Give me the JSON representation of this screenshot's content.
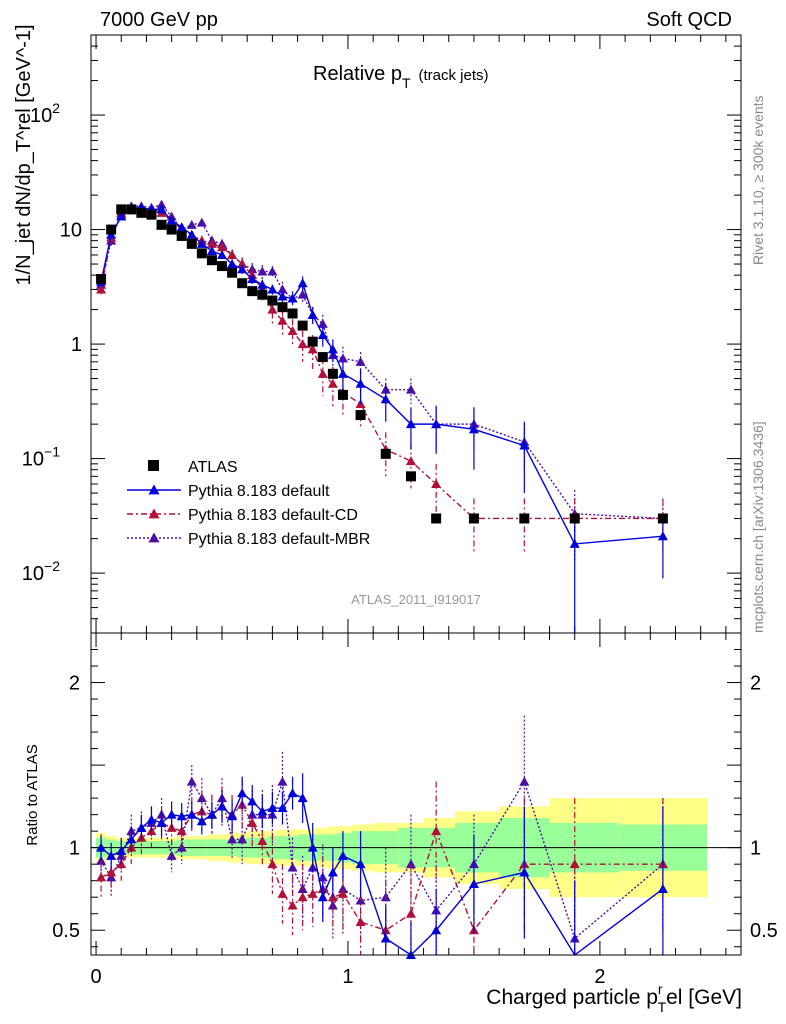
{
  "header": {
    "left": "7000 GeV pp",
    "right": "Soft QCD"
  },
  "side_labels": {
    "top": "Rivet 3.1.10, ≥ 300k events",
    "bottom": "mcplots.cern.ch [arXiv:1306.3436]"
  },
  "chart_data": {
    "type": "scatter",
    "title_main": "Relative p",
    "title_sub": "T",
    "title_suffix": "(track jets)",
    "watermark": "ATLAS_2011_I919017",
    "ylabel": "1/N_jet dN/dp_T^rel [GeV^-1]",
    "xlabel_main": "Charged particle p",
    "xlabel_sub": "T",
    "xlabel_sup": "r",
    "xlabel_suffix": "el [GeV]",
    "ratio_ylabel": "Ratio to ATLAS",
    "xlim": [
      -0.02,
      2.56
    ],
    "ylim": [
      0.003,
      500
    ],
    "ratio_ylim": [
      0.35,
      2.3
    ],
    "x_major_ticks": [
      0,
      1,
      2
    ],
    "x_tick_labels": [
      "0",
      "1",
      "2"
    ],
    "y_tick_labels": [
      {
        "v": 0.01,
        "base": "10",
        "exp": "−2"
      },
      {
        "v": 0.1,
        "base": "10",
        "exp": "−1"
      },
      {
        "v": 1,
        "base": "1",
        "exp": ""
      },
      {
        "v": 10,
        "base": "10",
        "exp": ""
      },
      {
        "v": 100,
        "base": "10",
        "exp": "2"
      }
    ],
    "ratio_tick_labels": [
      {
        "v": 0.5,
        "label": "0.5"
      },
      {
        "v": 1,
        "label": "1"
      },
      {
        "v": 2,
        "label": "2"
      }
    ],
    "legend": [
      {
        "name": "ATLAS",
        "color": "#000000",
        "marker": "square",
        "dash": ""
      },
      {
        "name": "Pythia 8.183 default",
        "color": "#0000dd",
        "marker": "triangle",
        "dash": ""
      },
      {
        "name": "Pythia 8.183 default-CD",
        "color": "#b0103a",
        "marker": "triangle",
        "dash": "6,3,2,3"
      },
      {
        "name": "Pythia 8.183 default-MBR",
        "color": "#4b0fa8",
        "marker": "triangle",
        "dash": "2,2"
      }
    ],
    "band_inner_color": "#99ff99",
    "band_outer_color": "#ffff88",
    "data": {
      "x": [
        0.02,
        0.06,
        0.1,
        0.14,
        0.18,
        0.22,
        0.26,
        0.3,
        0.34,
        0.38,
        0.42,
        0.46,
        0.5,
        0.54,
        0.58,
        0.62,
        0.66,
        0.7,
        0.74,
        0.78,
        0.82,
        0.86,
        0.9,
        0.94,
        0.98,
        1.05,
        1.15,
        1.25,
        1.35,
        1.5,
        1.7,
        1.9,
        2.25
      ],
      "y": [
        3.7,
        10.0,
        15.0,
        15.0,
        14.0,
        13.5,
        11.0,
        10.0,
        8.8,
        7.5,
        6.2,
        5.4,
        4.8,
        4.2,
        3.4,
        2.9,
        2.7,
        2.4,
        2.1,
        1.85,
        1.45,
        1.05,
        0.77,
        0.55,
        0.36,
        0.24,
        0.11,
        0.07,
        0.03,
        0.03,
        0.03,
        0.03,
        0.03
      ],
      "err_rel_inner": [
        0.06,
        0.05,
        0.04,
        0.04,
        0.04,
        0.04,
        0.04,
        0.04,
        0.05,
        0.05,
        0.05,
        0.05,
        0.05,
        0.05,
        0.06,
        0.06,
        0.06,
        0.07,
        0.07,
        0.07,
        0.08,
        0.08,
        0.08,
        0.08,
        0.09,
        0.1,
        0.1,
        0.12,
        0.12,
        0.15,
        0.18,
        0.15,
        0.14
      ],
      "err_rel_outer": [
        0.09,
        0.07,
        0.06,
        0.06,
        0.06,
        0.06,
        0.06,
        0.06,
        0.07,
        0.07,
        0.07,
        0.08,
        0.08,
        0.09,
        0.09,
        0.1,
        0.1,
        0.1,
        0.11,
        0.11,
        0.11,
        0.12,
        0.12,
        0.13,
        0.13,
        0.14,
        0.15,
        0.15,
        0.18,
        0.22,
        0.25,
        0.3,
        0.3
      ]
    },
    "atlas": {
      "x": [
        0.02,
        0.06,
        0.1,
        0.14,
        0.18,
        0.22,
        0.26,
        0.3,
        0.34,
        0.38,
        0.42,
        0.46,
        0.5,
        0.54,
        0.58,
        0.62,
        0.66,
        0.7,
        0.74,
        0.78,
        0.82,
        0.86,
        0.9,
        0.94,
        0.98,
        1.05,
        1.15,
        1.25,
        1.35,
        1.5,
        1.7,
        1.9,
        2.25
      ],
      "y": [
        3.7,
        10.0,
        15.0,
        15.0,
        14.0,
        13.5,
        11.0,
        10.0,
        8.8,
        7.5,
        6.2,
        5.4,
        4.8,
        4.2,
        3.4,
        2.9,
        2.7,
        2.4,
        2.1,
        1.85,
        1.45,
        1.05,
        0.77,
        0.55,
        0.36,
        0.24,
        0.11,
        0.07,
        0.03,
        0.03,
        0.03,
        0.03,
        0.03
      ]
    },
    "series": [
      {
        "name": "Pythia 8.183 default",
        "color": "#0000dd",
        "dash": "",
        "x": [
          0.02,
          0.06,
          0.1,
          0.14,
          0.18,
          0.22,
          0.26,
          0.3,
          0.34,
          0.38,
          0.42,
          0.46,
          0.5,
          0.54,
          0.58,
          0.62,
          0.66,
          0.7,
          0.74,
          0.78,
          0.82,
          0.86,
          0.9,
          0.94,
          0.98,
          1.05,
          1.15,
          1.25,
          1.35,
          1.5,
          1.7,
          1.9,
          2.25
        ],
        "y": [
          3.5,
          9.0,
          13.0,
          15.5,
          15.5,
          15.0,
          15.0,
          12.0,
          10.5,
          9.0,
          7.5,
          6.5,
          6.0,
          5.0,
          4.5,
          3.7,
          3.3,
          3.0,
          2.6,
          2.5,
          3.4,
          1.8,
          1.2,
          0.9,
          0.55,
          0.45,
          0.33,
          0.2,
          0.2,
          0.18,
          0.13,
          0.018,
          0.021
        ],
        "err_lo": [
          0.3,
          0.6,
          0.8,
          0.9,
          0.9,
          0.9,
          0.9,
          0.8,
          0.7,
          0.6,
          0.5,
          0.5,
          0.5,
          0.4,
          0.4,
          0.35,
          0.35,
          0.3,
          0.3,
          0.3,
          0.5,
          0.3,
          0.25,
          0.2,
          0.15,
          0.15,
          0.12,
          0.08,
          0.09,
          0.1,
          0.08,
          0.0179,
          0.012
        ],
        "err_hi": [
          0.3,
          0.6,
          0.8,
          0.9,
          0.9,
          0.9,
          0.9,
          0.8,
          0.7,
          0.6,
          0.5,
          0.5,
          0.5,
          0.4,
          0.4,
          0.35,
          0.35,
          0.3,
          0.3,
          0.3,
          0.5,
          0.3,
          0.25,
          0.2,
          0.15,
          0.15,
          0.12,
          0.08,
          0.09,
          0.1,
          0.08,
          0.01,
          0.012
        ]
      },
      {
        "name": "Pythia 8.183 default-CD",
        "color": "#b0103a",
        "dash": "6,3,2,3",
        "x": [
          0.02,
          0.06,
          0.1,
          0.14,
          0.18,
          0.22,
          0.26,
          0.3,
          0.34,
          0.38,
          0.42,
          0.46,
          0.5,
          0.54,
          0.58,
          0.62,
          0.66,
          0.7,
          0.74,
          0.78,
          0.82,
          0.86,
          0.9,
          0.94,
          0.98,
          1.05,
          1.15,
          1.25,
          1.35,
          1.5,
          1.7,
          1.9,
          2.25
        ],
        "y": [
          3.0,
          8.5,
          13.5,
          15.0,
          15.0,
          15.0,
          14.0,
          12.0,
          10.0,
          9.0,
          8.0,
          7.5,
          7.0,
          6.0,
          5.0,
          4.0,
          3.0,
          2.0,
          1.6,
          1.3,
          1.0,
          0.9,
          0.55,
          0.45,
          0.38,
          0.3,
          0.12,
          0.095,
          0.06,
          0.03,
          0.03,
          0.03,
          0.03
        ],
        "err_lo": [
          0.4,
          0.8,
          1.0,
          1.0,
          1.0,
          1.0,
          1.0,
          0.9,
          0.9,
          0.8,
          0.8,
          0.8,
          0.7,
          0.7,
          0.7,
          0.6,
          0.6,
          0.5,
          0.4,
          0.35,
          0.3,
          0.3,
          0.2,
          0.18,
          0.15,
          0.12,
          0.05,
          0.04,
          0.03,
          0.015,
          0.015,
          0.015,
          0.015
        ],
        "err_hi": [
          0.4,
          0.8,
          1.0,
          1.0,
          1.0,
          1.0,
          1.0,
          0.9,
          0.9,
          0.8,
          0.8,
          0.8,
          0.7,
          0.7,
          0.7,
          0.6,
          0.6,
          0.5,
          0.4,
          0.35,
          0.3,
          0.3,
          0.2,
          0.18,
          0.15,
          0.12,
          0.05,
          0.04,
          0.03,
          0.015,
          0.015,
          0.015,
          0.015
        ]
      },
      {
        "name": "Pythia 8.183 default-MBR",
        "color": "#4b0fa8",
        "dash": "2,2",
        "x": [
          0.02,
          0.06,
          0.1,
          0.14,
          0.18,
          0.22,
          0.26,
          0.3,
          0.34,
          0.38,
          0.42,
          0.46,
          0.5,
          0.54,
          0.58,
          0.62,
          0.66,
          0.7,
          0.74,
          0.78,
          0.82,
          0.86,
          0.9,
          0.94,
          0.98,
          1.05,
          1.15,
          1.25,
          1.35,
          1.5,
          1.7,
          1.9,
          2.25
        ],
        "y": [
          3.3,
          8.0,
          14.0,
          16.0,
          16.0,
          15.5,
          16.5,
          13.0,
          10.0,
          11.0,
          11.5,
          8.0,
          7.5,
          6.0,
          5.0,
          4.5,
          4.3,
          4.3,
          3.0,
          2.5,
          2.7,
          1.8,
          1.5,
          0.8,
          0.75,
          0.7,
          0.4,
          0.4,
          0.2,
          0.2,
          0.14,
          0.033,
          0.03
        ],
        "err_lo": [
          0.4,
          0.8,
          1.0,
          1.0,
          1.0,
          1.0,
          1.0,
          0.9,
          0.9,
          0.8,
          0.8,
          0.8,
          0.7,
          0.7,
          0.7,
          0.6,
          0.6,
          0.5,
          0.5,
          0.4,
          0.4,
          0.3,
          0.3,
          0.2,
          0.2,
          0.15,
          0.1,
          0.1,
          0.08,
          0.08,
          0.06,
          0.02,
          0.01
        ],
        "err_hi": [
          0.4,
          0.8,
          1.0,
          1.0,
          1.0,
          1.0,
          1.0,
          0.9,
          0.9,
          0.8,
          0.8,
          0.8,
          0.7,
          0.7,
          0.7,
          0.6,
          0.6,
          0.5,
          0.5,
          0.4,
          0.4,
          0.3,
          0.3,
          0.2,
          0.2,
          0.15,
          0.1,
          0.1,
          0.08,
          0.08,
          0.06,
          0.02,
          0.01
        ]
      }
    ],
    "ratio_series": [
      {
        "name": "Pythia 8.183 default",
        "x": [
          0.02,
          0.06,
          0.1,
          0.14,
          0.18,
          0.22,
          0.26,
          0.3,
          0.34,
          0.38,
          0.42,
          0.46,
          0.5,
          0.54,
          0.58,
          0.62,
          0.66,
          0.7,
          0.74,
          0.78,
          0.82,
          0.86,
          0.9,
          0.94,
          0.98,
          1.05,
          1.15,
          1.25,
          1.35,
          1.5,
          1.7,
          1.9,
          2.25
        ],
        "y": [
          1.0,
          0.95,
          0.98,
          1.05,
          1.12,
          1.17,
          1.15,
          1.2,
          1.19,
          1.2,
          1.16,
          1.2,
          1.25,
          1.19,
          1.33,
          1.28,
          1.22,
          1.24,
          1.24,
          1.33,
          1.3,
          1.0,
          0.7,
          0.85,
          0.95,
          0.9,
          0.45,
          0.35,
          0.5,
          0.78,
          0.85,
          0.3,
          0.75
        ],
        "err_lo": [
          0.08,
          0.08,
          0.08,
          0.08,
          0.08,
          0.08,
          0.08,
          0.08,
          0.08,
          0.08,
          0.08,
          0.08,
          0.1,
          0.1,
          0.1,
          0.1,
          0.1,
          0.1,
          0.1,
          0.1,
          0.15,
          0.15,
          0.15,
          0.15,
          0.15,
          0.2,
          0.2,
          0.2,
          0.25,
          0.3,
          0.4,
          0.5,
          0.5
        ],
        "err_hi": [
          0.08,
          0.08,
          0.08,
          0.08,
          0.08,
          0.08,
          0.08,
          0.08,
          0.08,
          0.08,
          0.08,
          0.08,
          0.1,
          0.1,
          0.1,
          0.1,
          0.1,
          0.1,
          0.1,
          0.1,
          0.15,
          0.15,
          0.15,
          0.15,
          0.15,
          0.2,
          0.2,
          0.2,
          0.25,
          0.3,
          0.4,
          0.5,
          0.5
        ]
      },
      {
        "name": "Pythia 8.183 default-CD",
        "x": [
          0.02,
          0.06,
          0.1,
          0.14,
          0.18,
          0.22,
          0.26,
          0.3,
          0.34,
          0.38,
          0.42,
          0.46,
          0.5,
          0.54,
          0.58,
          0.62,
          0.66,
          0.7,
          0.74,
          0.78,
          0.82,
          0.86,
          0.9,
          0.94,
          0.98,
          1.05,
          1.15,
          1.25,
          1.35,
          1.5,
          1.7,
          1.9,
          2.25
        ],
        "y": [
          0.82,
          0.85,
          0.9,
          1.0,
          1.06,
          1.1,
          1.15,
          1.12,
          1.1,
          1.2,
          1.22,
          1.2,
          1.25,
          1.2,
          1.26,
          1.15,
          1.04,
          0.9,
          0.72,
          0.65,
          0.7,
          0.72,
          0.75,
          0.7,
          0.72,
          0.55,
          0.5,
          0.6,
          1.1,
          0.5,
          0.9,
          0.9,
          0.9
        ],
        "err_lo": [
          0.12,
          0.12,
          0.1,
          0.1,
          0.1,
          0.1,
          0.1,
          0.1,
          0.1,
          0.1,
          0.12,
          0.12,
          0.12,
          0.12,
          0.15,
          0.15,
          0.15,
          0.18,
          0.18,
          0.18,
          0.2,
          0.2,
          0.2,
          0.2,
          0.25,
          0.25,
          0.3,
          0.3,
          0.3,
          0.3,
          0.4,
          0.4,
          0.4
        ],
        "err_hi": [
          0.12,
          0.12,
          0.1,
          0.1,
          0.1,
          0.1,
          0.1,
          0.1,
          0.1,
          0.1,
          0.12,
          0.12,
          0.12,
          0.12,
          0.15,
          0.15,
          0.15,
          0.18,
          0.18,
          0.18,
          0.2,
          0.2,
          0.2,
          0.2,
          0.25,
          0.25,
          0.3,
          0.3,
          0.3,
          0.3,
          0.4,
          0.4,
          0.4
        ]
      },
      {
        "name": "Pythia 8.183 default-MBR",
        "x": [
          0.02,
          0.06,
          0.1,
          0.14,
          0.18,
          0.22,
          0.26,
          0.3,
          0.34,
          0.38,
          0.42,
          0.46,
          0.5,
          0.54,
          0.58,
          0.62,
          0.66,
          0.7,
          0.74,
          0.78,
          0.82,
          0.86,
          0.9,
          0.94,
          0.98,
          1.05,
          1.15,
          1.25,
          1.35,
          1.5,
          1.7,
          1.9,
          2.25
        ],
        "y": [
          0.92,
          0.82,
          0.95,
          1.1,
          1.12,
          1.15,
          1.2,
          0.95,
          1.0,
          1.4,
          1.3,
          1.2,
          1.3,
          1.05,
          1.05,
          1.2,
          1.2,
          1.2,
          1.4,
          0.88,
          0.75,
          0.88,
          0.82,
          0.65,
          0.75,
          0.68,
          0.7,
          0.9,
          0.62,
          0.9,
          1.4,
          0.45,
          0.9
        ],
        "err_lo": [
          0.12,
          0.12,
          0.1,
          0.1,
          0.1,
          0.1,
          0.1,
          0.1,
          0.1,
          0.1,
          0.12,
          0.12,
          0.12,
          0.12,
          0.15,
          0.15,
          0.15,
          0.18,
          0.18,
          0.18,
          0.2,
          0.2,
          0.2,
          0.2,
          0.25,
          0.25,
          0.3,
          0.3,
          0.3,
          0.3,
          0.4,
          0.4,
          0.4
        ],
        "err_hi": [
          0.12,
          0.12,
          0.1,
          0.1,
          0.1,
          0.1,
          0.1,
          0.1,
          0.1,
          0.1,
          0.12,
          0.12,
          0.12,
          0.12,
          0.15,
          0.15,
          0.15,
          0.18,
          0.18,
          0.18,
          0.2,
          0.2,
          0.2,
          0.2,
          0.25,
          0.25,
          0.3,
          0.3,
          0.3,
          0.3,
          0.4,
          0.4,
          0.4
        ]
      }
    ]
  }
}
